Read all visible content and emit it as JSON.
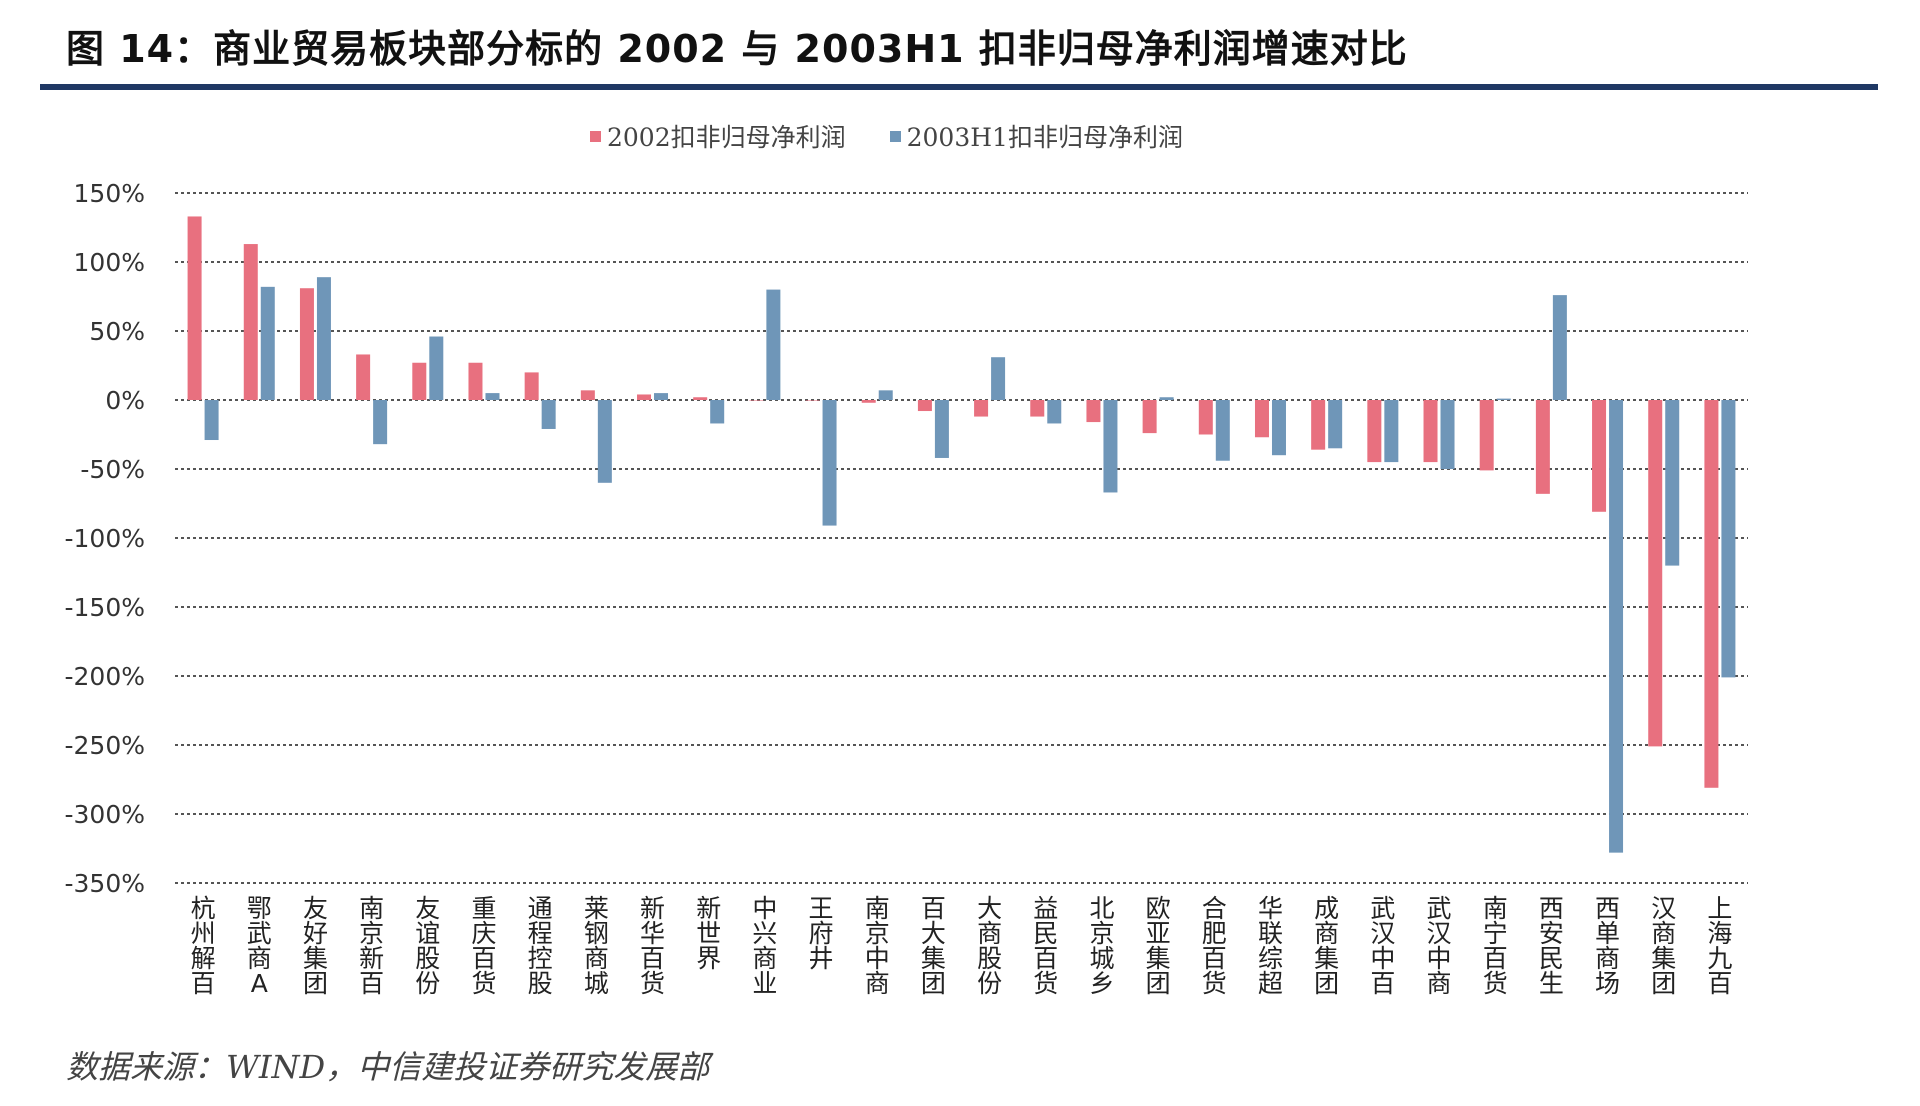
{
  "title": "图 14：商业贸易板块部分标的 2002 与 2003H1 扣非归母净利润增速对比",
  "source": "数据来源：WIND，中信建投证券研究发展部",
  "colors": {
    "series1": "#e8707f",
    "series2": "#6f96b8",
    "grid": "#555555",
    "rule": "#1f3864"
  },
  "chart_data": {
    "type": "bar",
    "categories": [
      "杭州解百",
      "鄂武商A",
      "友好集团",
      "南京新百",
      "友谊股份",
      "重庆百货",
      "通程控股",
      "莱钢商城",
      "新华百货",
      "新世界",
      "中兴商业",
      "王府井",
      "南京中商",
      "百大集团",
      "大商股份",
      "益民百货",
      "北京城乡",
      "欧亚集团",
      "合肥百货",
      "华联综超",
      "成商集团",
      "武汉中百",
      "武汉中商",
      "南宁百货",
      "西安民生",
      "西单商场",
      "汉商集团",
      "上海九百"
    ],
    "series": [
      {
        "name": "2002扣非归母净利润",
        "values": [
          133,
          113,
          81,
          33,
          27,
          27,
          20,
          7,
          4,
          2,
          0,
          0,
          -2,
          -8,
          -12,
          -12,
          -16,
          -24,
          -25,
          -27,
          -36,
          -45,
          -45,
          -51,
          -68,
          -81,
          -251,
          -281
        ]
      },
      {
        "name": "2003H1扣非归母净利润",
        "values": [
          -29,
          82,
          89,
          -32,
          46,
          5,
          -21,
          -60,
          5,
          -17,
          80,
          -91,
          7,
          -42,
          31,
          -17,
          -67,
          2,
          -44,
          -40,
          -35,
          -45,
          -50,
          1,
          76,
          -328,
          -120,
          -201
        ]
      }
    ],
    "ylim": [
      -350,
      150
    ],
    "yticks": [
      150,
      100,
      50,
      0,
      -50,
      -100,
      -150,
      -200,
      -250,
      -300,
      -350
    ],
    "ytick_labels": [
      "150%",
      "100%",
      "50%",
      "0%",
      "-50%",
      "-100%",
      "-150%",
      "-200%",
      "-250%",
      "-300%",
      "-350%"
    ],
    "grid": true,
    "legend_position": "top-center"
  }
}
